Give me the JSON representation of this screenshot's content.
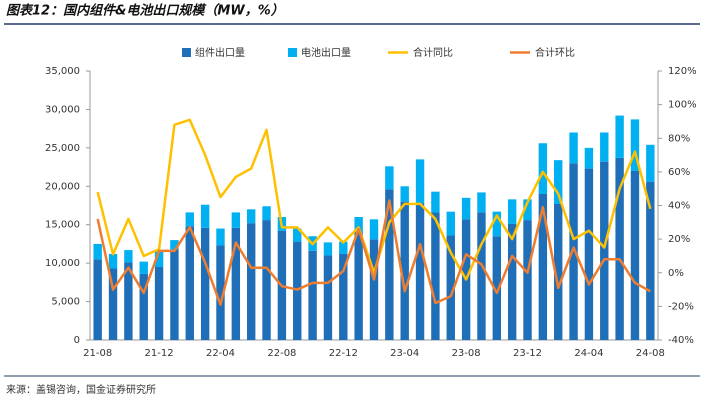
{
  "chart_data": {
    "type": "bar-line",
    "title": "图表12：国内组件&电池出口规模（MW，%）",
    "source": "来源：盖锡咨询，国金证券研究所",
    "categories": [
      "21-08",
      null,
      null,
      null,
      "21-12",
      null,
      null,
      null,
      "22-04",
      null,
      null,
      null,
      "22-08",
      null,
      null,
      null,
      "22-12",
      null,
      null,
      null,
      "23-04",
      null,
      null,
      null,
      "23-08",
      null,
      null,
      null,
      "23-12",
      null,
      null,
      null,
      "24-04",
      null,
      null,
      null,
      "24-08"
    ],
    "series": [
      {
        "name": "组件出口量",
        "color": "#1f6fb8",
        "kind": "bar",
        "values": [
          10500,
          9300,
          10100,
          8600,
          9500,
          11800,
          14800,
          14600,
          12300,
          14600,
          15200,
          15600,
          14200,
          12800,
          11600,
          11000,
          11200,
          14000,
          13100,
          19600,
          18000,
          17800,
          16600,
          13600,
          15700,
          16600,
          13500,
          15100,
          15600,
          19000,
          17700,
          23000,
          22300,
          23200,
          23700,
          22000,
          20600
        ]
      },
      {
        "name": "电池出口量",
        "color": "#00b0f0",
        "kind": "bar",
        "values": [
          2000,
          1900,
          1600,
          1600,
          2000,
          1200,
          1800,
          3000,
          2200,
          2000,
          1800,
          1800,
          1800,
          1700,
          1900,
          1700,
          1600,
          2000,
          2600,
          3000,
          2000,
          5700,
          2700,
          3100,
          2800,
          2600,
          3200,
          3200,
          2700,
          6600,
          5700,
          4000,
          2700,
          3800,
          5500,
          6700,
          4800
        ]
      },
      {
        "name": "合计同比",
        "color": "#ffc000",
        "kind": "line",
        "axis": "y2",
        "values": [
          48,
          11,
          32,
          10,
          14,
          88,
          91,
          70,
          45,
          57,
          62,
          85,
          27,
          27,
          17,
          27,
          18,
          27,
          0,
          30,
          41,
          41,
          32,
          12,
          -4,
          17,
          34,
          20,
          42,
          60,
          47,
          20,
          25,
          15,
          50,
          72,
          38
        ]
      },
      {
        "name": "合计环比",
        "color": "#ed7d31",
        "kind": "line",
        "axis": "y2",
        "values": [
          32,
          -10,
          3,
          -12,
          13,
          13,
          27,
          6,
          -19,
          18,
          3,
          3,
          -8,
          -10,
          -6,
          -6,
          1,
          26,
          -4,
          43,
          -11,
          17,
          -18,
          -14,
          11,
          5,
          -12,
          10,
          0,
          39,
          -9,
          15,
          -7,
          8,
          8,
          -6,
          -11
        ]
      }
    ],
    "ylim": [
      0,
      35000
    ],
    "yticks": [
      0,
      {
        "value": 5000,
        "label": "5,000"
      },
      {
        "value": 10000,
        "label": "10,000"
      },
      {
        "value": 15000,
        "label": "15,000"
      },
      {
        "value": 20000,
        "label": "20,000"
      },
      {
        "value": 25000,
        "label": "25,000"
      },
      {
        "value": 30000,
        "label": "30,000"
      },
      {
        "value": 35000,
        "label": "35,000"
      }
    ],
    "y2lim": [
      -40,
      120
    ],
    "y2ticks": [
      {
        "value": -40,
        "label": "-40%"
      },
      {
        "value": -20,
        "label": "-20%"
      },
      {
        "value": 0,
        "label": "0%"
      },
      {
        "value": 20,
        "label": "20%"
      },
      {
        "value": 40,
        "label": "40%"
      },
      {
        "value": 60,
        "label": "60%"
      },
      {
        "value": 80,
        "label": "80%"
      },
      {
        "value": 100,
        "label": "100%"
      },
      {
        "value": 120,
        "label": "120%"
      }
    ]
  }
}
